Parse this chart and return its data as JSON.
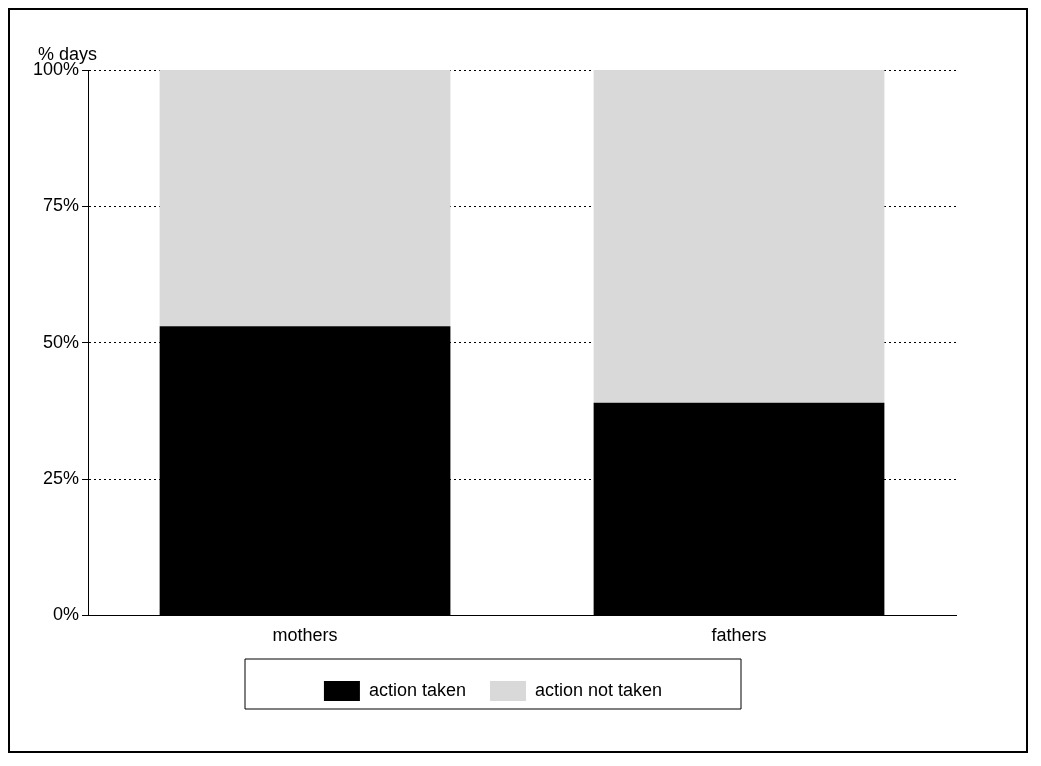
{
  "chart_data": {
    "type": "bar",
    "ylabel": "% days",
    "categories": [
      "mothers",
      "fathers"
    ],
    "stacked": true,
    "series": [
      {
        "name": "action taken",
        "color": "#000000",
        "values": [
          53,
          39
        ]
      },
      {
        "name": "action not taken",
        "color": "#d9d9d9",
        "values": [
          47,
          61
        ]
      }
    ],
    "ylim": [
      0,
      100
    ],
    "yticks": [
      {
        "value": 0,
        "label": "0%"
      },
      {
        "value": 25,
        "label": "25%"
      },
      {
        "value": 50,
        "label": "50%"
      },
      {
        "value": 75,
        "label": "75%"
      },
      {
        "value": 100,
        "label": "100%"
      }
    ],
    "grid": "y",
    "legend": "bottom"
  }
}
